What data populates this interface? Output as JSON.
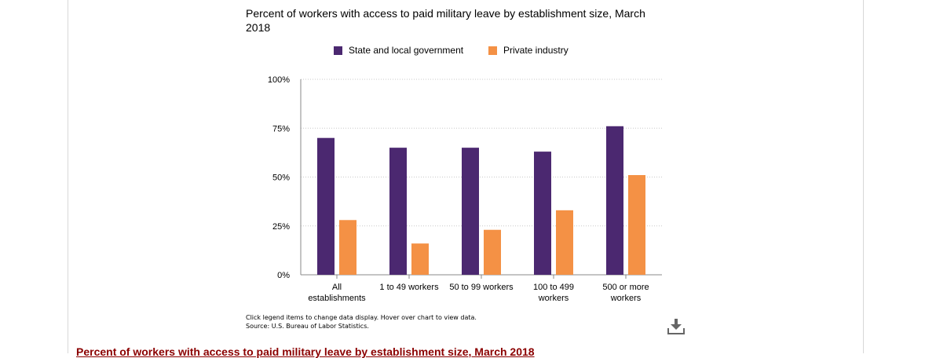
{
  "chart_data": {
    "type": "bar",
    "title": "Percent of workers with access to paid military leave by establishment size, March 2018",
    "categories": [
      [
        "All",
        "establishments"
      ],
      [
        "1 to 49 workers"
      ],
      [
        "50 to 99 workers"
      ],
      [
        "100 to 499",
        "workers"
      ],
      [
        "500 or more",
        "workers"
      ]
    ],
    "series": [
      {
        "name": "State and local government",
        "color": "#4b2870",
        "values": [
          70,
          65,
          65,
          63,
          76
        ]
      },
      {
        "name": "Private industry",
        "color": "#f49145",
        "values": [
          28,
          16,
          23,
          33,
          51
        ]
      }
    ],
    "ylim": [
      0,
      100
    ],
    "yticks": [
      "0%",
      "25%",
      "50%",
      "75%",
      "100%"
    ],
    "ytick_values": [
      0,
      25,
      50,
      75,
      100
    ],
    "grid": true,
    "legend": "top"
  },
  "notes": {
    "instructions": "Click legend items to change data display. Hover over chart to view data.",
    "source": "Source: U.S. Bureau of Labor Statistics."
  },
  "icons": {
    "download": "download-icon"
  },
  "footer": {
    "link_text": "Percent of workers with access to paid military leave by establishment size, March 2018"
  }
}
